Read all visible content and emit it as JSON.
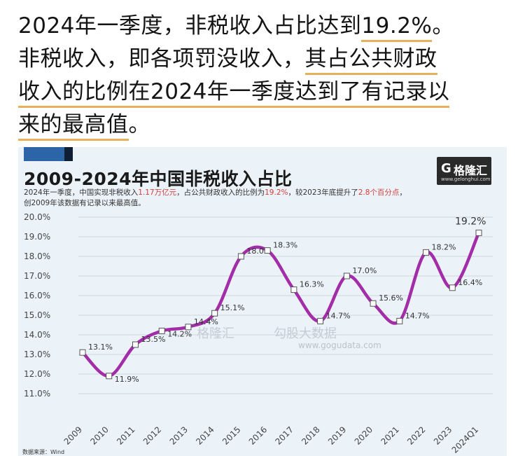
{
  "article": {
    "line1_a": "2024年一季度，非税收入占比达到",
    "line1_b": "19.2%",
    "line1_c": "。",
    "line2_a": "非税收入，即各项罚没收入，",
    "line2_b": "其占公共财政",
    "line3": "收入的比例在2024年一季度达到了有记录以",
    "line4_a": "来的最高值",
    "line4_b": "。"
  },
  "card": {
    "title": "2009-2024年中国非税收入占比",
    "subtitle_a": "2024年一季度，中国实现非税收入",
    "subtitle_b": "1.17万亿元",
    "subtitle_c": "，占公共财政收入的比例为",
    "subtitle_d": "19.2%",
    "subtitle_e": "，较2023年底提升了",
    "subtitle_f": "2.8个百分点",
    "subtitle_g": "，",
    "subtitle_line2": "创2009年该数据有记录以来最高值。",
    "logo_mark": "G",
    "logo_name": "格隆汇",
    "logo_site": "www.gelonghui.com",
    "watermark_brand": "格隆汇",
    "watermark_text": "勾股大数据",
    "watermark_site": "www.gogudata.com",
    "footnote": "数据来源：Wind"
  },
  "chart_data": {
    "type": "line",
    "categories": [
      "2009",
      "2010",
      "2011",
      "2012",
      "2013",
      "2014",
      "2015",
      "2016",
      "2017",
      "2018",
      "2019",
      "2020",
      "2021",
      "2022",
      "2023",
      "2024Q1"
    ],
    "series": [
      {
        "values": [
          13.1,
          11.9,
          13.5,
          14.2,
          14.4,
          15.1,
          18.0,
          18.3,
          16.3,
          14.7,
          17.0,
          15.6,
          14.7,
          18.2,
          16.4,
          19.2
        ]
      }
    ],
    "labels": [
      "13.1%",
      "11.9%",
      "13.5%",
      "14.2%",
      "14.4%",
      "15.1%",
      "18.0%",
      "18.3%",
      "16.3%",
      "14.7%",
      "17.0%",
      "15.6%",
      "14.7%",
      "18.2%",
      "16.4%",
      "19.2%"
    ],
    "yticks": [
      "11.0%",
      "12.0%",
      "13.0%",
      "14.0%",
      "15.0%",
      "16.0%",
      "17.0%",
      "18.0%",
      "19.0%",
      "20.0%"
    ],
    "ylim": [
      11.0,
      20.0
    ],
    "line_color": "#a32ca8",
    "grid": true
  }
}
